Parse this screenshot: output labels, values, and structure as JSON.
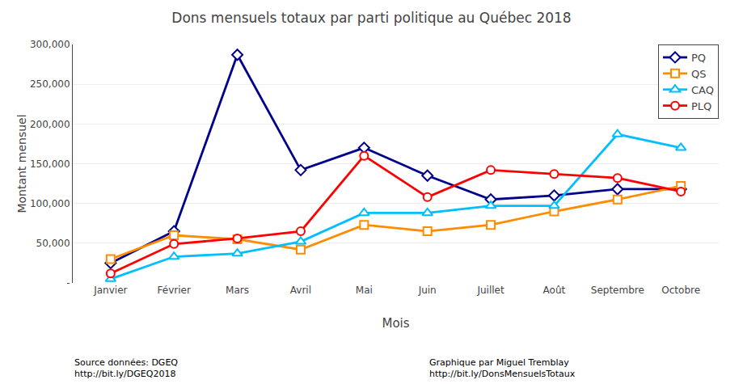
{
  "chart_data": {
    "type": "line",
    "title": "Dons mensuels totaux par parti politique au Québec 2018",
    "xlabel": "Mois",
    "ylabel": "Montant mensuel",
    "categories": [
      "Janvier",
      "Février",
      "Mars",
      "Avril",
      "Mai",
      "Juin",
      "Juillet",
      "Août",
      "Septembre",
      "Octobre"
    ],
    "series": [
      {
        "name": "PQ",
        "color": "#00008B",
        "marker": "diamond",
        "values": [
          25000,
          65000,
          287000,
          142000,
          170000,
          135000,
          105000,
          110000,
          118000,
          118000
        ]
      },
      {
        "name": "QS",
        "color": "#FF8C00",
        "marker": "square",
        "values": [
          30000,
          60000,
          55000,
          42000,
          73000,
          65000,
          73000,
          90000,
          105000,
          122000
        ]
      },
      {
        "name": "CAQ",
        "color": "#00BFFF",
        "marker": "triangle-up",
        "values": [
          5000,
          33000,
          37000,
          52000,
          88000,
          88000,
          97000,
          97000,
          187000,
          170000
        ]
      },
      {
        "name": "PLQ",
        "color": "#FF0000",
        "marker": "circle",
        "values": [
          12000,
          49000,
          56000,
          65000,
          160000,
          108000,
          142000,
          137000,
          132000,
          115000
        ]
      }
    ],
    "ylim": [
      0,
      300000
    ],
    "yticks": [
      {
        "value": 0,
        "label": "-"
      },
      {
        "value": 50000,
        "label": "50,000"
      },
      {
        "value": 100000,
        "label": "100,000"
      },
      {
        "value": 150000,
        "label": "150,000"
      },
      {
        "value": 200000,
        "label": "200,000"
      },
      {
        "value": 250000,
        "label": "250,000"
      },
      {
        "value": 300000,
        "label": "300,000"
      }
    ],
    "grid": true,
    "legend": "upper right",
    "annotations": [
      "Source données: DGEQ\nhttp://bit.ly/DGEQ2018",
      "Graphique par Miguel Tremblay\nhttp://bit.ly/DonsMensuelsTotaux"
    ]
  }
}
